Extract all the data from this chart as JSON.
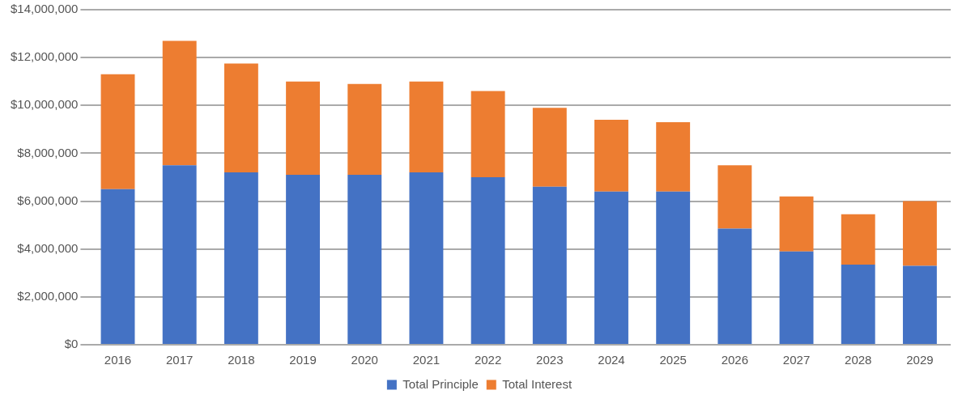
{
  "chart_data": {
    "type": "bar",
    "stacked": true,
    "categories": [
      "2016",
      "2017",
      "2018",
      "2019",
      "2020",
      "2021",
      "2022",
      "2023",
      "2024",
      "2025",
      "2026",
      "2027",
      "2028",
      "2029"
    ],
    "series": [
      {
        "name": "Total Principle",
        "color": "#4472c4",
        "values": [
          6500000,
          7500000,
          7200000,
          7100000,
          7100000,
          7200000,
          7000000,
          6600000,
          6400000,
          6400000,
          4850000,
          3900000,
          3350000,
          3300000
        ]
      },
      {
        "name": "Total Interest",
        "color": "#ed7d31",
        "values": [
          4800000,
          5200000,
          4550000,
          3900000,
          3800000,
          3800000,
          3600000,
          3300000,
          3000000,
          2900000,
          2650000,
          2300000,
          2100000,
          2700000
        ]
      }
    ],
    "ylim": [
      0,
      14000000
    ],
    "yticks": [
      {
        "value": 0,
        "label": "$0"
      },
      {
        "value": 2000000,
        "label": "$2,000,000"
      },
      {
        "value": 4000000,
        "label": "$4,000,000"
      },
      {
        "value": 6000000,
        "label": "$6,000,000"
      },
      {
        "value": 8000000,
        "label": "$8,000,000"
      },
      {
        "value": 10000000,
        "label": "$10,000,000"
      },
      {
        "value": 12000000,
        "label": "$12,000,000"
      },
      {
        "value": 14000000,
        "label": "$14,000,000"
      }
    ],
    "grid": "y",
    "legend": "bottom"
  }
}
